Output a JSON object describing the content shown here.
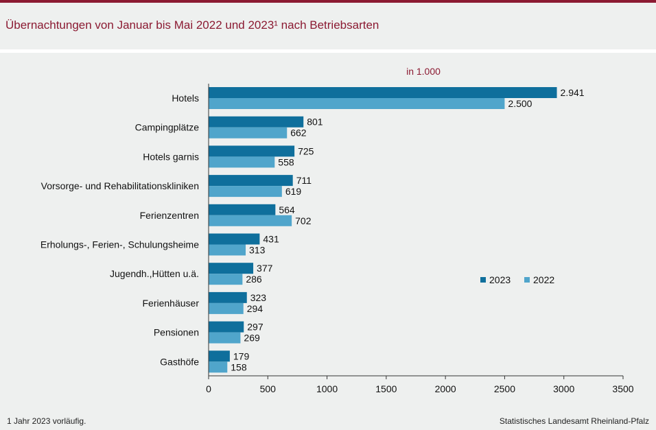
{
  "header": {
    "title": "Übernachtungen von Januar bis Mai 2022 und 2023¹ nach Betriebsarten"
  },
  "chart_data": {
    "type": "bar",
    "orientation": "horizontal",
    "unit_label": "in 1.000",
    "categories": [
      "Hotels",
      "Campingplätze",
      "Hotels garnis",
      "Vorsorge- und Rehabilitationskliniken",
      "Ferienzentren",
      "Erholungs-, Ferien-, Schulungsheime",
      "Jugendh.,Hütten u.ä.",
      "Ferienhäuser",
      "Pensionen",
      "Gasthöfe"
    ],
    "series": [
      {
        "name": "2023",
        "color": "#0f6f9c",
        "values": [
          2941,
          801,
          725,
          711,
          564,
          431,
          377,
          323,
          297,
          179
        ],
        "labels": [
          "2.941",
          "801",
          "725",
          "711",
          "564",
          "431",
          "377",
          "323",
          "297",
          "179"
        ]
      },
      {
        "name": "2022",
        "color": "#50a5cb",
        "values": [
          2500,
          662,
          558,
          619,
          702,
          313,
          286,
          294,
          269,
          158
        ],
        "labels": [
          "2.500",
          "662",
          "558",
          "619",
          "702",
          "313",
          "286",
          "294",
          "269",
          "158"
        ]
      }
    ],
    "xlim": [
      0,
      3500
    ],
    "xticks": [
      0,
      500,
      1000,
      1500,
      2000,
      2500,
      3000,
      3500
    ],
    "grid": false,
    "legend_position": "right-middle"
  },
  "footer": {
    "footnote": "1 Jahr 2023 vorläufig.",
    "source": "Statistisches Landesamt Rheinland-Pfalz"
  }
}
